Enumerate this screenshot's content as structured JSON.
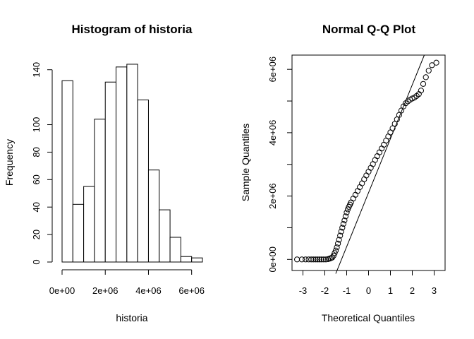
{
  "chart_data": [
    {
      "type": "bar",
      "title": "Histogram of historia",
      "xlabel": "historia",
      "ylabel": "Frequency",
      "bin_edges": [
        0,
        500000,
        1000000,
        1500000,
        2000000,
        2500000,
        3000000,
        3500000,
        4000000,
        4500000,
        5000000,
        5500000,
        6000000,
        6500000
      ],
      "values": [
        132,
        42,
        55,
        104,
        131,
        142,
        144,
        118,
        67,
        38,
        18,
        4,
        3
      ],
      "xlim": [
        0,
        6500000
      ],
      "ylim": [
        0,
        145
      ],
      "x_ticks": [
        0,
        2000000,
        4000000,
        6000000
      ],
      "x_tick_labels": [
        "0e+00",
        "2e+06",
        "4e+06",
        "6e+06"
      ],
      "y_ticks": [
        0,
        20,
        40,
        60,
        80,
        100,
        140
      ],
      "y_tick_labels": [
        "0",
        "20",
        "40",
        "60",
        "80",
        "100",
        "140"
      ],
      "grid": false,
      "colors": {
        "bar_fill": "#ffffff",
        "bar_stroke": "#000000"
      }
    },
    {
      "type": "scatter",
      "title": "Normal Q-Q Plot",
      "xlabel": "Theoretical Quantiles",
      "ylabel": "Sample Quantiles",
      "x_ticks": [
        -3,
        -2,
        -1,
        0,
        1,
        2,
        3
      ],
      "x_tick_labels": [
        "-3",
        "-2",
        "-1",
        "0",
        "1",
        "2",
        "3"
      ],
      "y_ticks": [
        0,
        2000000,
        4000000,
        6000000
      ],
      "y_tick_labels": [
        "0e+00",
        "2e+06",
        "4e+06",
        "6e+06"
      ],
      "xlim": [
        -3.5,
        3.5
      ],
      "ylim": [
        -350000,
        6450000
      ],
      "grid": false,
      "points": [
        [
          -3.27,
          0
        ],
        [
          -3.05,
          0
        ],
        [
          -2.88,
          0
        ],
        [
          -2.74,
          0
        ],
        [
          -2.62,
          0
        ],
        [
          -2.52,
          0
        ],
        [
          -2.42,
          0
        ],
        [
          -2.33,
          0
        ],
        [
          -2.24,
          0
        ],
        [
          -2.15,
          0
        ],
        [
          -2.05,
          0
        ],
        [
          -1.95,
          0
        ],
        [
          -1.85,
          10000
        ],
        [
          -1.78,
          25000
        ],
        [
          -1.72,
          40000
        ],
        [
          -1.66,
          60000
        ],
        [
          -1.6,
          120000
        ],
        [
          -1.55,
          200000
        ],
        [
          -1.5,
          280000
        ],
        [
          -1.45,
          380000
        ],
        [
          -1.4,
          500000
        ],
        [
          -1.35,
          620000
        ],
        [
          -1.3,
          750000
        ],
        [
          -1.25,
          880000
        ],
        [
          -1.2,
          1000000
        ],
        [
          -1.15,
          1120000
        ],
        [
          -1.1,
          1230000
        ],
        [
          -1.05,
          1360000
        ],
        [
          -1.0,
          1480000
        ],
        [
          -0.95,
          1580000
        ],
        [
          -0.9,
          1660000
        ],
        [
          -0.85,
          1730000
        ],
        [
          -0.8,
          1800000
        ],
        [
          -0.7,
          1920000
        ],
        [
          -0.6,
          2040000
        ],
        [
          -0.5,
          2160000
        ],
        [
          -0.4,
          2280000
        ],
        [
          -0.3,
          2400000
        ],
        [
          -0.2,
          2530000
        ],
        [
          -0.1,
          2650000
        ],
        [
          0.0,
          2770000
        ],
        [
          0.1,
          2890000
        ],
        [
          0.2,
          3010000
        ],
        [
          0.3,
          3140000
        ],
        [
          0.4,
          3260000
        ],
        [
          0.5,
          3380000
        ],
        [
          0.6,
          3500000
        ],
        [
          0.7,
          3620000
        ],
        [
          0.8,
          3750000
        ],
        [
          0.9,
          3880000
        ],
        [
          1.0,
          4010000
        ],
        [
          1.1,
          4140000
        ],
        [
          1.2,
          4280000
        ],
        [
          1.3,
          4420000
        ],
        [
          1.4,
          4560000
        ],
        [
          1.5,
          4700000
        ],
        [
          1.6,
          4830000
        ],
        [
          1.7,
          4930000
        ],
        [
          1.8,
          4990000
        ],
        [
          1.9,
          5040000
        ],
        [
          2.0,
          5080000
        ],
        [
          2.1,
          5110000
        ],
        [
          2.2,
          5160000
        ],
        [
          2.3,
          5220000
        ],
        [
          2.4,
          5330000
        ],
        [
          2.5,
          5540000
        ],
        [
          2.62,
          5750000
        ],
        [
          2.75,
          5960000
        ],
        [
          2.9,
          6130000
        ],
        [
          3.1,
          6210000
        ]
      ],
      "reference_line": {
        "x": [
          -1.5,
          2.55
        ],
        "y": [
          -450000,
          6450000
        ]
      },
      "colors": {
        "point_stroke": "#000000",
        "line": "#000000"
      }
    }
  ]
}
